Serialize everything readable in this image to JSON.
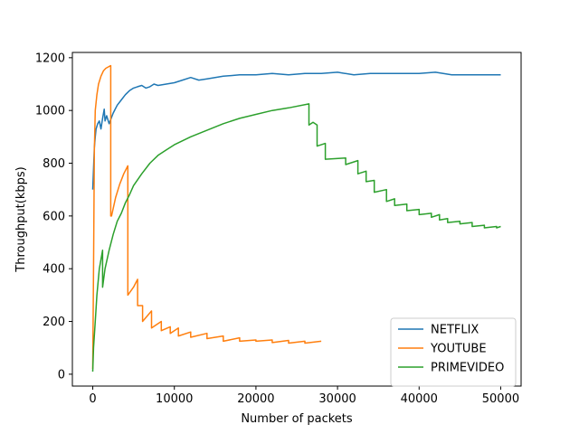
{
  "chart_data": {
    "type": "line",
    "title": "",
    "xlabel": "Number of packets",
    "ylabel": "Throughput(kbps)",
    "xlim": [
      -2500,
      52500
    ],
    "ylim": [
      -45,
      1220
    ],
    "xticks": [
      0,
      10000,
      20000,
      30000,
      40000,
      50000
    ],
    "xtick_labels": [
      "0",
      "10000",
      "20000",
      "30000",
      "40000",
      "50000"
    ],
    "yticks": [
      0,
      200,
      400,
      600,
      800,
      1000,
      1200
    ],
    "ytick_labels": [
      "0",
      "200",
      "400",
      "600",
      "800",
      "1000",
      "1200"
    ],
    "grid": false,
    "legend_position": "lower-right",
    "series": [
      {
        "name": "NETFLIX",
        "color": "#1f77b4",
        "x": [
          0,
          100,
          200,
          300,
          400,
          600,
          800,
          1000,
          1200,
          1400,
          1500,
          1700,
          2000,
          2500,
          3000,
          3500,
          4000,
          4500,
          5000,
          5500,
          6000,
          6500,
          7000,
          7500,
          8000,
          9000,
          10000,
          11000,
          12000,
          13000,
          14000,
          16000,
          18000,
          20000,
          22000,
          24000,
          26000,
          28000,
          30000,
          32000,
          34000,
          36000,
          38000,
          40000,
          42000,
          44000,
          46000,
          48000,
          50000
        ],
        "y": [
          700,
          780,
          860,
          900,
          930,
          950,
          960,
          930,
          970,
          1005,
          960,
          980,
          950,
          990,
          1020,
          1040,
          1060,
          1075,
          1085,
          1090,
          1095,
          1085,
          1090,
          1100,
          1095,
          1100,
          1105,
          1115,
          1125,
          1115,
          1120,
          1130,
          1135,
          1135,
          1140,
          1135,
          1140,
          1140,
          1145,
          1135,
          1140,
          1140,
          1140,
          1140,
          1145,
          1135,
          1135,
          1135,
          1135
        ]
      },
      {
        "name": "YOUTUBE",
        "color": "#ff7f0e",
        "x": [
          0,
          100,
          200,
          300,
          500,
          700,
          1000,
          1300,
          1600,
          1900,
          2200,
          2200,
          2300,
          2800,
          3300,
          3800,
          4300,
          4300,
          5000,
          5500,
          5500,
          6100,
          6100,
          7200,
          7200,
          8400,
          8400,
          9500,
          9500,
          10500,
          10500,
          12000,
          12000,
          14000,
          14000,
          16000,
          16000,
          18000,
          18000,
          20000,
          20000,
          22000,
          22000,
          24000,
          24000,
          26000,
          26000,
          28000
        ],
        "y": [
          20,
          400,
          850,
          1000,
          1060,
          1100,
          1130,
          1150,
          1160,
          1165,
          1170,
          600,
          600,
          670,
          720,
          760,
          790,
          300,
          330,
          360,
          260,
          260,
          200,
          240,
          175,
          200,
          165,
          180,
          155,
          175,
          145,
          160,
          140,
          155,
          135,
          145,
          125,
          138,
          125,
          130,
          125,
          130,
          120,
          128,
          118,
          125,
          118,
          125
        ]
      },
      {
        "name": "PRIMEVIDEO",
        "color": "#2ca02c",
        "x": [
          0,
          100,
          300,
          500,
          800,
          1200,
          1200,
          1500,
          2000,
          2500,
          3000,
          3500,
          4000,
          4500,
          5000,
          6000,
          7000,
          8000,
          9000,
          10000,
          12000,
          14000,
          16000,
          18000,
          20000,
          22000,
          24000,
          26500,
          26500,
          27000,
          27500,
          27500,
          28500,
          28500,
          31000,
          31000,
          32500,
          32500,
          33500,
          33500,
          34500,
          34500,
          36000,
          36000,
          37000,
          37000,
          38500,
          38500,
          40000,
          40000,
          41500,
          41500,
          42500,
          42500,
          43500,
          43500,
          45000,
          45000,
          46500,
          46500,
          48000,
          48000,
          49500,
          49500,
          50000
        ],
        "y": [
          10,
          100,
          200,
          300,
          400,
          470,
          330,
          400,
          470,
          530,
          580,
          610,
          650,
          680,
          715,
          760,
          800,
          830,
          850,
          870,
          900,
          925,
          950,
          970,
          985,
          1000,
          1010,
          1025,
          945,
          955,
          945,
          865,
          875,
          815,
          820,
          795,
          810,
          760,
          770,
          730,
          735,
          690,
          700,
          655,
          665,
          640,
          645,
          620,
          625,
          605,
          610,
          595,
          605,
          585,
          590,
          575,
          580,
          570,
          575,
          560,
          565,
          555,
          560,
          555,
          560
        ]
      }
    ]
  }
}
